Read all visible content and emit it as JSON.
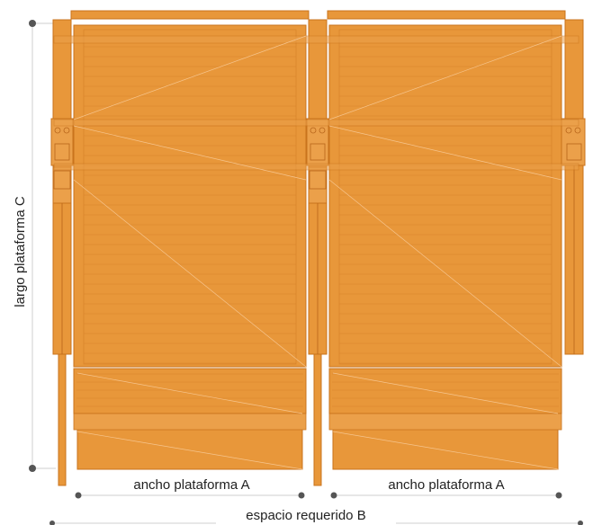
{
  "labels": {
    "width_a_left": "ancho plataforma A",
    "width_a_right": "ancho plataforma A",
    "required_space_b": "espacio requerido B",
    "length_c": "largo plataforma C"
  },
  "colors": {
    "platform_fill": "#E8973A",
    "platform_stroke": "#C9731C",
    "platform_light": "#F2B46C",
    "dimension_line": "#cfcfcf",
    "dimension_dot": "#555555",
    "text": "#222222"
  }
}
